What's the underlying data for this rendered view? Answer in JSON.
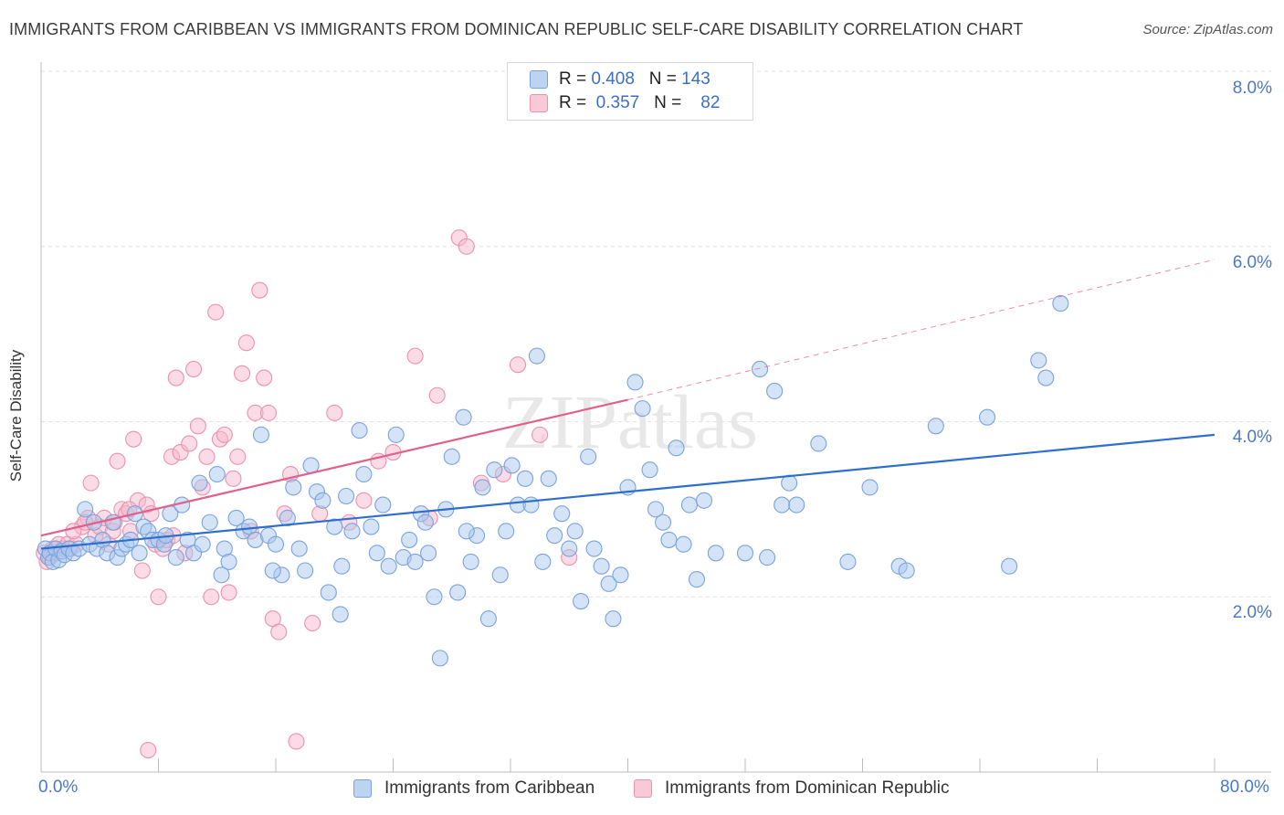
{
  "title": "IMMIGRANTS FROM CARIBBEAN VS IMMIGRANTS FROM DOMINICAN REPUBLIC SELF-CARE DISABILITY CORRELATION CHART",
  "source": "Source: ZipAtlas.com",
  "watermark": "ZIPatlas",
  "legend": {
    "rows": [
      {
        "r_label": "R =",
        "r_value": "0.408",
        "n_label": "N =",
        "n_value": "143"
      },
      {
        "r_label": "R =",
        "r_value": "0.357",
        "n_label": "N =",
        "n_value": "82"
      }
    ]
  },
  "colors": {
    "caribbean_fill": "#a9c7ee",
    "caribbean_stroke": "#7aa3dc",
    "caribbean_line": "#2f6fcc",
    "dominican_fill": "#f7b8cb",
    "dominican_stroke": "#ec92ad",
    "dominican_line": "#e0618c",
    "tick_text": "#4a78c8",
    "grid": "#e3e3e3"
  },
  "chart_data": {
    "type": "scatter",
    "title": "IMMIGRANTS FROM CARIBBEAN VS IMMIGRANTS FROM DOMINICAN REPUBLIC SELF-CARE DISABILITY CORRELATION CHART",
    "xlabel": "",
    "ylabel": "Self-Care Disability",
    "xlim": [
      0,
      80
    ],
    "ylim": [
      0,
      8.0
    ],
    "x_tick_labels": [
      "0.0%",
      "80.0%"
    ],
    "y_ticks": [
      2.0,
      4.0,
      6.0,
      8.0
    ],
    "y_tick_labels": [
      "2.0%",
      "4.0%",
      "6.0%",
      "8.0%"
    ],
    "grid": true,
    "legend_position": "top-center",
    "series": [
      {
        "name": "Immigrants from Caribbean",
        "r": 0.408,
        "n": 143,
        "trend": {
          "x": [
            0,
            80
          ],
          "y": [
            2.55,
            3.85
          ],
          "dashed_extension": false
        },
        "points": [
          [
            0.3,
            2.55
          ],
          [
            0.5,
            2.45
          ],
          [
            0.6,
            2.5
          ],
          [
            0.8,
            2.4
          ],
          [
            1.0,
            2.55
          ],
          [
            1.2,
            2.42
          ],
          [
            1.4,
            2.52
          ],
          [
            1.6,
            2.48
          ],
          [
            1.9,
            2.55
          ],
          [
            2.2,
            2.5
          ],
          [
            2.6,
            2.55
          ],
          [
            3.0,
            3.0
          ],
          [
            3.3,
            2.6
          ],
          [
            3.6,
            2.85
          ],
          [
            3.8,
            2.55
          ],
          [
            4.2,
            2.65
          ],
          [
            4.5,
            2.5
          ],
          [
            4.9,
            2.85
          ],
          [
            5.2,
            2.45
          ],
          [
            5.5,
            2.55
          ],
          [
            5.8,
            2.6
          ],
          [
            6.1,
            2.65
          ],
          [
            6.4,
            2.95
          ],
          [
            6.7,
            2.5
          ],
          [
            7.0,
            2.8
          ],
          [
            7.3,
            2.75
          ],
          [
            7.6,
            2.65
          ],
          [
            8.0,
            2.65
          ],
          [
            8.4,
            2.6
          ],
          [
            8.8,
            2.95
          ],
          [
            9.2,
            2.45
          ],
          [
            9.6,
            3.05
          ],
          [
            10.0,
            2.65
          ],
          [
            10.4,
            2.5
          ],
          [
            11.0,
            2.6
          ],
          [
            11.5,
            2.85
          ],
          [
            12.0,
            3.4
          ],
          [
            12.5,
            2.55
          ],
          [
            12.8,
            2.4
          ],
          [
            13.3,
            2.9
          ],
          [
            13.8,
            2.75
          ],
          [
            14.2,
            2.8
          ],
          [
            14.6,
            2.65
          ],
          [
            15.0,
            3.85
          ],
          [
            15.5,
            2.7
          ],
          [
            16.0,
            2.6
          ],
          [
            16.4,
            2.25
          ],
          [
            16.8,
            2.9
          ],
          [
            17.2,
            3.25
          ],
          [
            17.6,
            2.55
          ],
          [
            18.0,
            2.3
          ],
          [
            18.4,
            3.5
          ],
          [
            18.8,
            3.2
          ],
          [
            19.2,
            3.1
          ],
          [
            19.6,
            2.05
          ],
          [
            20.0,
            2.8
          ],
          [
            20.4,
            1.8
          ],
          [
            20.8,
            3.15
          ],
          [
            21.2,
            2.75
          ],
          [
            21.7,
            3.9
          ],
          [
            22.0,
            3.4
          ],
          [
            22.5,
            2.8
          ],
          [
            22.9,
            2.5
          ],
          [
            23.3,
            3.05
          ],
          [
            23.7,
            2.35
          ],
          [
            24.2,
            3.85
          ],
          [
            24.7,
            2.45
          ],
          [
            25.1,
            2.65
          ],
          [
            25.5,
            2.4
          ],
          [
            25.9,
            2.95
          ],
          [
            26.4,
            2.5
          ],
          [
            26.8,
            2.0
          ],
          [
            27.2,
            1.3
          ],
          [
            27.6,
            3.0
          ],
          [
            28.0,
            3.6
          ],
          [
            28.4,
            2.05
          ],
          [
            28.8,
            4.05
          ],
          [
            29.3,
            2.4
          ],
          [
            29.7,
            2.7
          ],
          [
            30.1,
            3.25
          ],
          [
            30.5,
            1.75
          ],
          [
            30.9,
            3.45
          ],
          [
            31.3,
            2.25
          ],
          [
            31.7,
            2.75
          ],
          [
            32.1,
            3.5
          ],
          [
            32.5,
            3.05
          ],
          [
            33.0,
            3.35
          ],
          [
            33.4,
            3.05
          ],
          [
            33.8,
            4.75
          ],
          [
            34.2,
            2.4
          ],
          [
            34.6,
            3.35
          ],
          [
            35.0,
            2.7
          ],
          [
            35.5,
            2.95
          ],
          [
            36.0,
            2.55
          ],
          [
            36.4,
            2.75
          ],
          [
            36.8,
            1.95
          ],
          [
            37.3,
            3.6
          ],
          [
            37.7,
            2.55
          ],
          [
            38.2,
            2.35
          ],
          [
            38.7,
            2.15
          ],
          [
            39.0,
            1.75
          ],
          [
            39.5,
            2.25
          ],
          [
            40.0,
            3.25
          ],
          [
            40.5,
            4.45
          ],
          [
            41.0,
            4.15
          ],
          [
            41.5,
            3.45
          ],
          [
            41.9,
            3.0
          ],
          [
            42.4,
            2.85
          ],
          [
            42.8,
            2.65
          ],
          [
            43.3,
            3.7
          ],
          [
            43.8,
            2.6
          ],
          [
            44.2,
            3.05
          ],
          [
            44.7,
            2.2
          ],
          [
            45.2,
            3.1
          ],
          [
            46.0,
            2.5
          ],
          [
            48.0,
            2.5
          ],
          [
            49.0,
            4.6
          ],
          [
            49.5,
            2.45
          ],
          [
            50.0,
            4.35
          ],
          [
            50.5,
            3.05
          ],
          [
            51.0,
            3.3
          ],
          [
            51.5,
            3.05
          ],
          [
            53.0,
            3.75
          ],
          [
            55.0,
            2.4
          ],
          [
            56.5,
            3.25
          ],
          [
            58.5,
            2.35
          ],
          [
            59.0,
            2.3
          ],
          [
            61.0,
            3.95
          ],
          [
            64.5,
            4.05
          ],
          [
            66.0,
            2.35
          ],
          [
            68.0,
            4.7
          ],
          [
            68.5,
            4.5
          ],
          [
            69.5,
            5.35
          ],
          [
            8.5,
            2.7
          ],
          [
            10.8,
            3.3
          ],
          [
            12.3,
            2.25
          ],
          [
            15.8,
            2.3
          ],
          [
            20.5,
            2.35
          ],
          [
            26.2,
            2.85
          ],
          [
            29.0,
            2.75
          ]
        ]
      },
      {
        "name": "Immigrants from Dominican Republic",
        "r": 0.357,
        "n": 82,
        "trend": {
          "x": [
            0,
            40
          ],
          "y": [
            2.7,
            4.25
          ],
          "dashed_extension": true,
          "extension_to": [
            80,
            5.85
          ]
        },
        "points": [
          [
            0.2,
            2.5
          ],
          [
            0.4,
            2.4
          ],
          [
            0.6,
            2.45
          ],
          [
            0.8,
            2.55
          ],
          [
            1.0,
            2.5
          ],
          [
            1.2,
            2.6
          ],
          [
            1.5,
            2.55
          ],
          [
            1.8,
            2.6
          ],
          [
            2.0,
            2.55
          ],
          [
            2.4,
            2.6
          ],
          [
            2.8,
            2.8
          ],
          [
            3.2,
            2.9
          ],
          [
            3.4,
            3.3
          ],
          [
            3.7,
            2.7
          ],
          [
            4.0,
            2.8
          ],
          [
            4.3,
            2.9
          ],
          [
            4.6,
            2.6
          ],
          [
            4.9,
            2.75
          ],
          [
            5.2,
            3.55
          ],
          [
            5.5,
            3.0
          ],
          [
            5.8,
            2.95
          ],
          [
            6.1,
            2.75
          ],
          [
            6.3,
            3.8
          ],
          [
            6.6,
            3.1
          ],
          [
            6.9,
            2.3
          ],
          [
            7.2,
            3.05
          ],
          [
            7.5,
            2.95
          ],
          [
            7.8,
            2.6
          ],
          [
            8.0,
            2.0
          ],
          [
            8.3,
            2.55
          ],
          [
            8.6,
            2.65
          ],
          [
            8.9,
            3.6
          ],
          [
            9.2,
            4.5
          ],
          [
            9.5,
            3.65
          ],
          [
            9.8,
            2.5
          ],
          [
            10.1,
            3.75
          ],
          [
            10.4,
            4.6
          ],
          [
            10.7,
            3.95
          ],
          [
            11.0,
            3.25
          ],
          [
            11.3,
            3.6
          ],
          [
            11.6,
            2.0
          ],
          [
            11.9,
            5.25
          ],
          [
            12.2,
            3.8
          ],
          [
            12.5,
            3.85
          ],
          [
            12.8,
            2.05
          ],
          [
            13.1,
            3.35
          ],
          [
            13.4,
            3.6
          ],
          [
            13.7,
            4.55
          ],
          [
            14.0,
            4.9
          ],
          [
            14.3,
            2.75
          ],
          [
            14.6,
            4.1
          ],
          [
            14.9,
            5.5
          ],
          [
            15.2,
            4.5
          ],
          [
            15.5,
            4.1
          ],
          [
            15.8,
            1.75
          ],
          [
            16.2,
            1.6
          ],
          [
            16.6,
            2.95
          ],
          [
            17.0,
            3.4
          ],
          [
            17.4,
            0.35
          ],
          [
            18.5,
            1.7
          ],
          [
            19.0,
            2.95
          ],
          [
            20.0,
            4.1
          ],
          [
            21.0,
            2.85
          ],
          [
            22.0,
            3.1
          ],
          [
            23.0,
            3.55
          ],
          [
            24.0,
            3.65
          ],
          [
            25.5,
            4.75
          ],
          [
            26.5,
            2.9
          ],
          [
            27.0,
            4.3
          ],
          [
            28.5,
            6.1
          ],
          [
            29.0,
            6.0
          ],
          [
            30.0,
            3.3
          ],
          [
            31.5,
            3.4
          ],
          [
            32.5,
            4.65
          ],
          [
            34.0,
            3.85
          ],
          [
            36.0,
            2.45
          ],
          [
            7.3,
            0.25
          ],
          [
            9.0,
            2.7
          ],
          [
            3.0,
            2.85
          ],
          [
            6.0,
            3.0
          ],
          [
            2.2,
            2.75
          ],
          [
            5.0,
            2.85
          ]
        ]
      }
    ]
  },
  "bottom_legend": [
    {
      "label": "Immigrants from Caribbean"
    },
    {
      "label": "Immigrants from Dominican Republic"
    }
  ]
}
